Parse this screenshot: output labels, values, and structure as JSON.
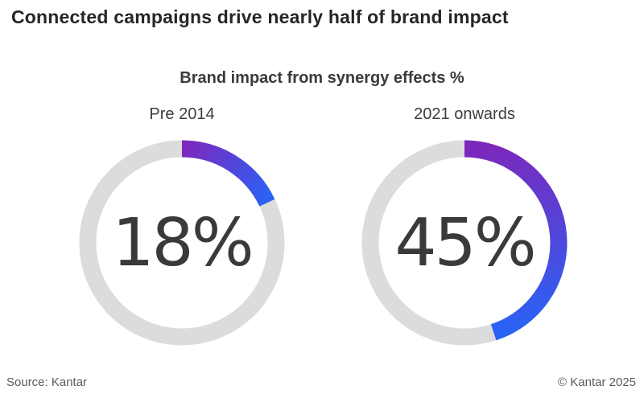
{
  "page": {
    "title": "Connected campaigns drive nearly half of brand impact",
    "footer_left": "Source: Kantar",
    "footer_right": "© Kantar 2025"
  },
  "chart_data": {
    "type": "pie",
    "variant": "donut-gauge",
    "title": "Brand impact from synergy effects %",
    "unit": "%",
    "start_angle_deg": 0,
    "direction": "clockwise",
    "series": [
      {
        "label": "Pre 2014",
        "value": 18,
        "display": "18%"
      },
      {
        "label": "2021 onwards",
        "value": 45,
        "display": "45%"
      }
    ],
    "colors": {
      "ring_background": "#DCDCDC",
      "arc_gradient_start": "#7D27BC",
      "arc_gradient_end": "#2A62F5",
      "value_text": "#3A3A3A"
    }
  }
}
